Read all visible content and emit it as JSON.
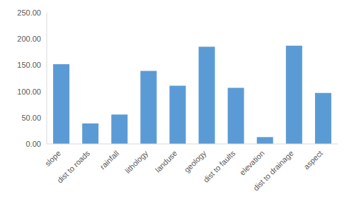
{
  "chart_data": {
    "type": "bar",
    "categories": [
      "slope",
      "dist to roads",
      "rainfall",
      "lithology",
      "landuse",
      "geology",
      "dist to faults",
      "elevation",
      "dist to drainage",
      "aspect"
    ],
    "values": [
      152,
      39,
      56,
      139,
      111,
      185,
      107,
      13,
      187,
      97
    ],
    "color": "#5b9bd5",
    "ylim": [
      0,
      250
    ],
    "yticks": [
      {
        "value": 0,
        "label": "0.00"
      },
      {
        "value": 50,
        "label": "50.00"
      },
      {
        "value": 100,
        "label": "100.00"
      },
      {
        "value": 150,
        "label": "150.00"
      },
      {
        "value": 200,
        "label": "200.00"
      },
      {
        "value": 250,
        "label": "250.00"
      }
    ],
    "grid": false
  }
}
